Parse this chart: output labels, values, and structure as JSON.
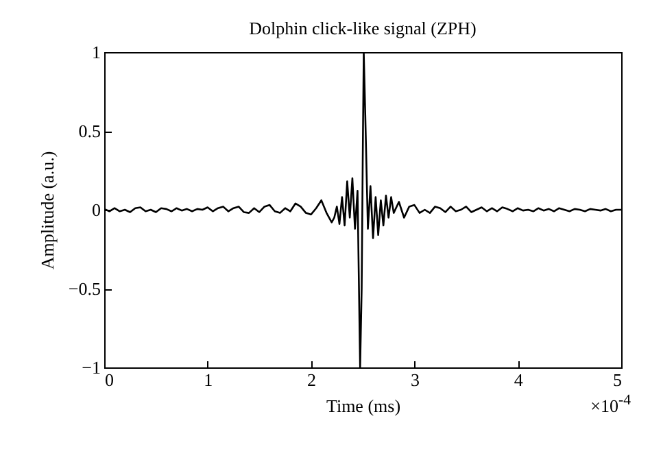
{
  "chart_data": {
    "type": "line",
    "title": "Dolphin click-like signal (ZPH)",
    "xlabel": "Time (ms)",
    "ylabel": "Amplitude (a.u.)",
    "annotations": [
      "×10$^{-4}$"
    ],
    "x": [
      0,
      0.05,
      0.1,
      0.15,
      0.2,
      0.25,
      0.3,
      0.35,
      0.4,
      0.45,
      0.5,
      0.55,
      0.6,
      0.65,
      0.7,
      0.75,
      0.8,
      0.85,
      0.9,
      0.95,
      1.0,
      1.05,
      1.1,
      1.15,
      1.2,
      1.25,
      1.3,
      1.35,
      1.4,
      1.45,
      1.5,
      1.55,
      1.6,
      1.65,
      1.7,
      1.75,
      1.8,
      1.85,
      1.9,
      1.95,
      2.0,
      2.05,
      2.1,
      2.15,
      2.2,
      2.225,
      2.25,
      2.275,
      2.3,
      2.325,
      2.35,
      2.375,
      2.4,
      2.425,
      2.45,
      2.475,
      2.49,
      2.5,
      2.51,
      2.525,
      2.55,
      2.575,
      2.6,
      2.625,
      2.65,
      2.675,
      2.7,
      2.725,
      2.75,
      2.775,
      2.8,
      2.85,
      2.9,
      2.95,
      3.0,
      3.05,
      3.1,
      3.15,
      3.2,
      3.25,
      3.3,
      3.35,
      3.4,
      3.45,
      3.5,
      3.55,
      3.6,
      3.65,
      3.7,
      3.75,
      3.8,
      3.85,
      3.9,
      3.95,
      4.0,
      4.05,
      4.1,
      4.15,
      4.2,
      4.25,
      4.3,
      4.35,
      4.4,
      4.45,
      4.5,
      4.55,
      4.6,
      4.65,
      4.7,
      4.75,
      4.8,
      4.85,
      4.9,
      4.95,
      5.0
    ],
    "series": [
      {
        "color": "#000000",
        "values": [
          0.005,
          -0.01,
          0.01,
          -0.01,
          0.0,
          -0.015,
          0.01,
          0.015,
          -0.01,
          0.0,
          -0.015,
          0.01,
          0.005,
          -0.01,
          0.01,
          -0.005,
          0.005,
          -0.01,
          0.005,
          0.0,
          0.015,
          -0.01,
          0.01,
          0.02,
          -0.01,
          0.01,
          0.02,
          -0.015,
          -0.02,
          0.01,
          -0.015,
          0.02,
          0.03,
          -0.01,
          -0.02,
          0.01,
          -0.01,
          0.04,
          0.02,
          -0.02,
          -0.03,
          0.01,
          0.06,
          -0.02,
          -0.08,
          -0.05,
          0.02,
          -0.09,
          0.08,
          -0.1,
          0.18,
          -0.05,
          0.2,
          -0.12,
          0.12,
          -1.0,
          -0.5,
          0.3,
          1.0,
          0.6,
          -0.12,
          0.15,
          -0.18,
          0.08,
          -0.16,
          0.06,
          -0.1,
          0.09,
          -0.05,
          0.08,
          -0.02,
          0.05,
          -0.05,
          0.02,
          0.03,
          -0.02,
          0.0,
          -0.02,
          0.02,
          0.01,
          -0.015,
          0.02,
          -0.01,
          0.0,
          0.02,
          -0.015,
          0.0,
          0.015,
          -0.01,
          0.01,
          -0.01,
          0.015,
          0.005,
          -0.01,
          0.01,
          -0.005,
          0.0,
          -0.01,
          0.01,
          -0.005,
          0.005,
          -0.01,
          0.01,
          0.0,
          -0.01,
          0.005,
          0.0,
          -0.01,
          0.005,
          0.0,
          -0.005,
          0.005,
          -0.01,
          0.0,
          0.0
        ]
      }
    ],
    "xlim": [
      0,
      5
    ],
    "xticks": [
      0,
      1,
      2,
      3,
      4,
      5
    ],
    "ylim": [
      -1,
      1
    ],
    "yticks": [
      -1,
      -0.5,
      0,
      0.5,
      1
    ],
    "grid": false,
    "legend": false,
    "marker": "none",
    "line_style": "solid"
  }
}
